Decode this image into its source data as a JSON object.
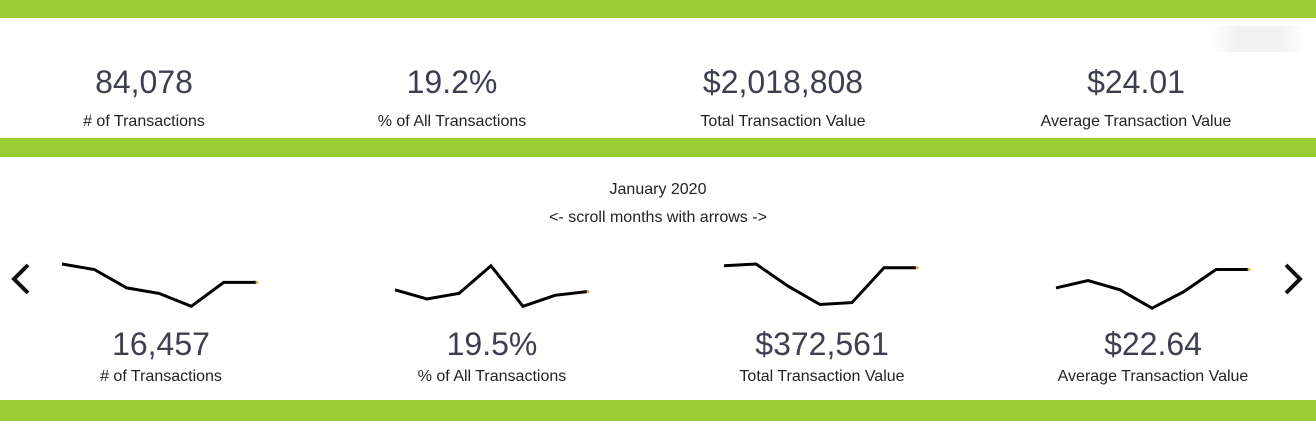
{
  "summary": {
    "kpis": [
      {
        "value": "84,078",
        "label": "# of Transactions"
      },
      {
        "value": "19.2%",
        "label": "% of All Transactions"
      },
      {
        "value": "$2,018,808",
        "label": "Total Transaction Value"
      },
      {
        "value": "$24.01",
        "label": "Average Transaction Value"
      }
    ]
  },
  "monthly": {
    "month": "January 2020",
    "hint": "<- scroll months with arrows ->",
    "kpis": [
      {
        "value": "16,457",
        "label": "# of Transactions"
      },
      {
        "value": "19.5%",
        "label": "% of All Transactions"
      },
      {
        "value": "$372,561",
        "label": "Total Transaction Value"
      },
      {
        "value": "$22.64",
        "label": "Average Transaction Value"
      }
    ]
  },
  "chart_data": {
    "type": "line",
    "sparklines": [
      {
        "values": [
          5.0,
          4.4,
          2.4,
          1.8,
          0.4,
          3.0,
          3.0
        ]
      },
      {
        "values": [
          2.2,
          1.2,
          1.8,
          4.8,
          0.4,
          1.6,
          2.0
        ]
      },
      {
        "values": [
          4.8,
          5.0,
          2.6,
          0.6,
          0.8,
          4.6,
          4.6
        ]
      },
      {
        "values": [
          2.4,
          3.2,
          2.2,
          0.2,
          2.0,
          4.4,
          4.4
        ]
      }
    ],
    "colors": {
      "line": "#000000",
      "end_marker": "#e8a33d"
    }
  },
  "colors": {
    "accent": "#9acd32",
    "value_text": "#3d3f4f"
  },
  "icons": {
    "prev": "chevron-left-icon",
    "next": "chevron-right-icon"
  }
}
